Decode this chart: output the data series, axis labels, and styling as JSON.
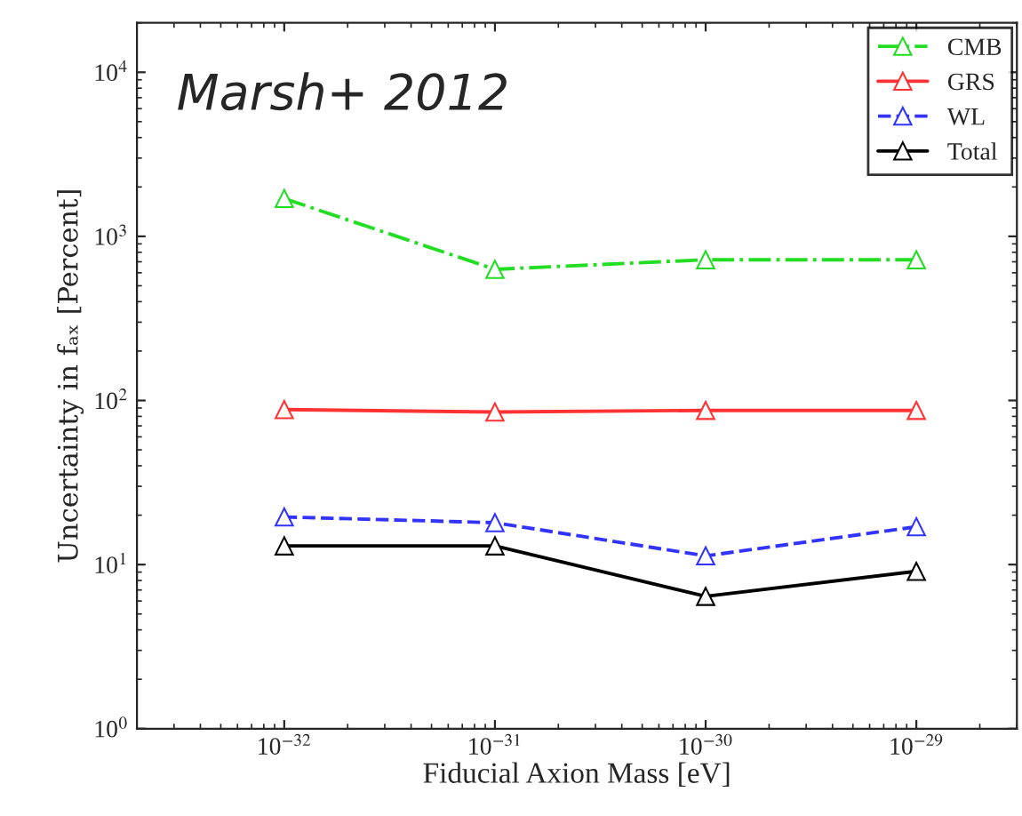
{
  "chart_data": {
    "type": "line",
    "xlabel": "Fiducial Axion Mass [eV]",
    "ylabel": "Uncertainty in fₐₓ [Percent]",
    "annotations": [
      "Marsh+ 2012"
    ],
    "x": [
      1e-32,
      1e-31,
      1e-30,
      1e-29
    ],
    "series": [
      {
        "name": "CMB",
        "color": "#22dd22",
        "line_style": "dashdot",
        "values": [
          1700,
          630,
          720,
          720
        ]
      },
      {
        "name": "GRS",
        "color": "#ff3333",
        "line_style": "solid",
        "values": [
          88,
          85,
          87,
          87
        ]
      },
      {
        "name": "WL",
        "color": "#3333ff",
        "line_style": "dashed",
        "values": [
          19.5,
          18,
          11.3,
          17
        ]
      },
      {
        "name": "Total",
        "color": "#000000",
        "line_style": "solid",
        "values": [
          13,
          13,
          6.4,
          9.1
        ]
      }
    ],
    "log": "xy",
    "marker": "triangle",
    "legend": "top right",
    "grid": false,
    "xlim": [
      2e-33,
      3e-29
    ],
    "ylim": [
      1,
      20000
    ],
    "xticks": [
      {
        "value": 1e-32,
        "label": "10$^{−32}$"
      },
      {
        "value": 1e-31,
        "label": "10$^{−31}$"
      },
      {
        "value": 1e-30,
        "label": "10$^{−30}$"
      },
      {
        "value": 1e-29,
        "label": "10$^{−29}$"
      }
    ],
    "yticks": [
      {
        "value": 1,
        "label": "10$^{0}$"
      },
      {
        "value": 10,
        "label": "10$^{1}$"
      },
      {
        "value": 100,
        "label": "10$^{2}$"
      },
      {
        "value": 1000,
        "label": "10$^{3}$"
      },
      {
        "value": 10000,
        "label": "10$^{4}$"
      }
    ]
  }
}
